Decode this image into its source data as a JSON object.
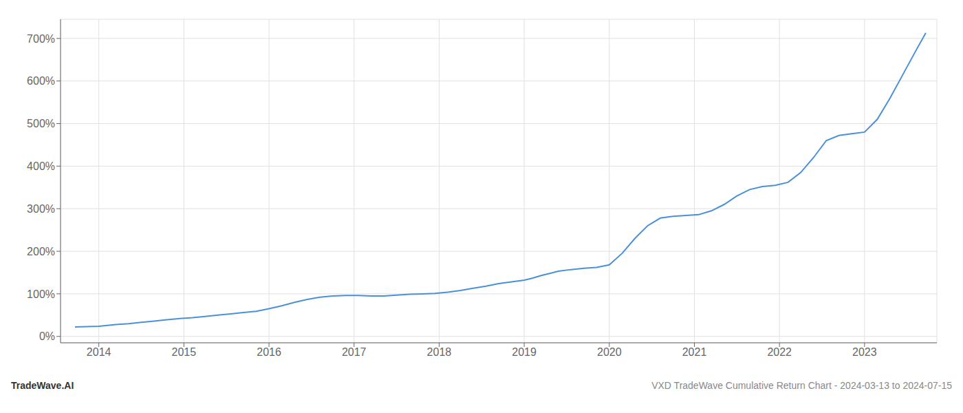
{
  "chart_data": {
    "type": "line",
    "title": "VXD TradeWave Cumulative Return Chart - 2024-03-13 to 2024-07-15",
    "annotations": [
      "TradeWave.AI"
    ],
    "x": [
      2013.72,
      2014.0,
      2014.1,
      2014.2,
      2014.35,
      2014.5,
      2014.65,
      2014.8,
      2014.95,
      2015.1,
      2015.25,
      2015.4,
      2015.55,
      2015.7,
      2015.85,
      2016.0,
      2016.15,
      2016.3,
      2016.45,
      2016.6,
      2016.75,
      2016.9,
      2017.05,
      2017.2,
      2017.35,
      2017.5,
      2017.65,
      2017.8,
      2017.95,
      2018.1,
      2018.25,
      2018.4,
      2018.55,
      2018.7,
      2018.85,
      2019.0,
      2019.1,
      2019.2,
      2019.3,
      2019.4,
      2019.55,
      2019.7,
      2019.85,
      2020.0,
      2020.15,
      2020.3,
      2020.45,
      2020.6,
      2020.75,
      2020.9,
      2021.05,
      2021.2,
      2021.35,
      2021.5,
      2021.65,
      2021.8,
      2021.95,
      2022.1,
      2022.25,
      2022.4,
      2022.55,
      2022.7,
      2022.85,
      2023.0,
      2023.15,
      2023.3,
      2023.45,
      2023.6,
      2023.72
    ],
    "values": [
      22,
      24,
      26,
      28,
      30,
      33,
      36,
      39,
      42,
      44,
      47,
      50,
      53,
      56,
      59,
      65,
      72,
      80,
      87,
      92,
      95,
      96,
      96,
      95,
      95,
      97,
      99,
      100,
      101,
      104,
      108,
      113,
      118,
      124,
      128,
      132,
      137,
      143,
      148,
      153,
      157,
      160,
      162,
      168,
      195,
      230,
      260,
      278,
      282,
      284,
      286,
      295,
      310,
      330,
      345,
      352,
      355,
      362,
      385,
      420,
      460,
      472,
      476,
      480,
      510,
      560,
      615,
      670,
      713
    ],
    "color": "#4a90d9",
    "xlim": [
      2013.55,
      2023.85
    ],
    "ylim": [
      -15,
      745
    ],
    "xticks": [
      2014,
      2015,
      2016,
      2017,
      2018,
      2019,
      2020,
      2021,
      2022,
      2023
    ],
    "yticks": [
      {
        "value": 0,
        "label": "0%"
      },
      {
        "value": 100,
        "label": "100%"
      },
      {
        "value": 200,
        "label": "200%"
      },
      {
        "value": 300,
        "label": "300%"
      },
      {
        "value": 400,
        "label": "400%"
      },
      {
        "value": 500,
        "label": "500%"
      },
      {
        "value": 600,
        "label": "600%"
      },
      {
        "value": 700,
        "label": "700%"
      }
    ],
    "grid": true
  }
}
